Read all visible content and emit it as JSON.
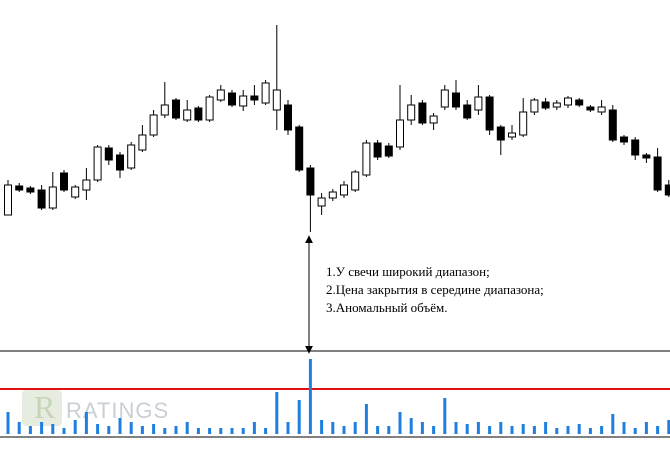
{
  "chart_data": [
    {
      "type": "candlestick",
      "open": [
        236,
        265,
        263,
        261,
        243,
        278,
        254,
        261,
        271,
        303,
        296,
        283,
        301,
        316,
        336,
        351,
        331,
        343,
        331,
        351,
        358,
        345,
        355,
        348,
        341,
        346,
        324,
        283,
        245,
        253,
        256,
        261,
        276,
        308,
        305,
        304,
        331,
        348,
        328,
        344,
        358,
        346,
        341,
        354,
        324,
        314,
        316,
        339,
        349,
        344,
        346,
        351,
        344,
        339,
        341,
        314,
        311,
        296,
        294,
        266
      ],
      "high": [
        271,
        268,
        265,
        266,
        279,
        281,
        266,
        283,
        306,
        306,
        299,
        309,
        326,
        341,
        369,
        353,
        351,
        345,
        356,
        366,
        361,
        361,
        366,
        371,
        426,
        351,
        326,
        286,
        258,
        262,
        270,
        281,
        311,
        311,
        308,
        366,
        356,
        351,
        338,
        366,
        371,
        351,
        366,
        356,
        326,
        326,
        353,
        353,
        353,
        351,
        355,
        353,
        346,
        351,
        346,
        316,
        314,
        298,
        303,
        271
      ],
      "low": [
        236,
        259,
        257,
        241,
        241,
        259,
        252,
        251,
        269,
        286,
        273,
        281,
        299,
        314,
        333,
        331,
        329,
        329,
        329,
        349,
        344,
        340,
        346,
        346,
        321,
        316,
        279,
        219,
        236,
        250,
        253,
        259,
        274,
        291,
        293,
        301,
        326,
        326,
        321,
        341,
        341,
        331,
        336,
        316,
        296,
        311,
        314,
        336,
        341,
        341,
        343,
        344,
        339,
        336,
        309,
        306,
        291,
        288,
        259,
        254
      ],
      "close": [
        266,
        261,
        259,
        243,
        264,
        261,
        264,
        271,
        304,
        291,
        281,
        306,
        316,
        336,
        346,
        333,
        341,
        331,
        354,
        361,
        346,
        355,
        351,
        368,
        361,
        321,
        281,
        256,
        253,
        259,
        266,
        279,
        308,
        294,
        295,
        331,
        346,
        328,
        335,
        361,
        344,
        333,
        354,
        321,
        311,
        318,
        339,
        351,
        343,
        348,
        353,
        346,
        341,
        344,
        311,
        309,
        296,
        293,
        261,
        256
      ],
      "up_color": "#ffffff",
      "down_color": "#000000",
      "ylim": [
        0,
        451
      ],
      "annotations": [
        "1.У свечи широкий диапазон;",
        "2.Цена закрытия в середине диапазона;",
        "3.Аномальный объём."
      ]
    },
    {
      "type": "bar",
      "values": [
        22,
        12,
        8,
        12,
        10,
        6,
        14,
        22,
        10,
        8,
        16,
        12,
        8,
        10,
        6,
        8,
        12,
        6,
        6,
        6,
        6,
        6,
        12,
        6,
        42,
        12,
        34,
        75,
        14,
        12,
        8,
        12,
        30,
        8,
        8,
        22,
        16,
        12,
        8,
        36,
        12,
        10,
        12,
        8,
        12,
        8,
        10,
        8,
        12,
        6,
        8,
        10,
        6,
        8,
        20,
        12,
        6,
        12,
        8,
        14
      ],
      "color": "#1e7fe0",
      "ylim": [
        0,
        83
      ],
      "hlines": [
        {
          "value": 45,
          "color": "#e01010"
        }
      ]
    }
  ],
  "watermark": "RATINGS"
}
